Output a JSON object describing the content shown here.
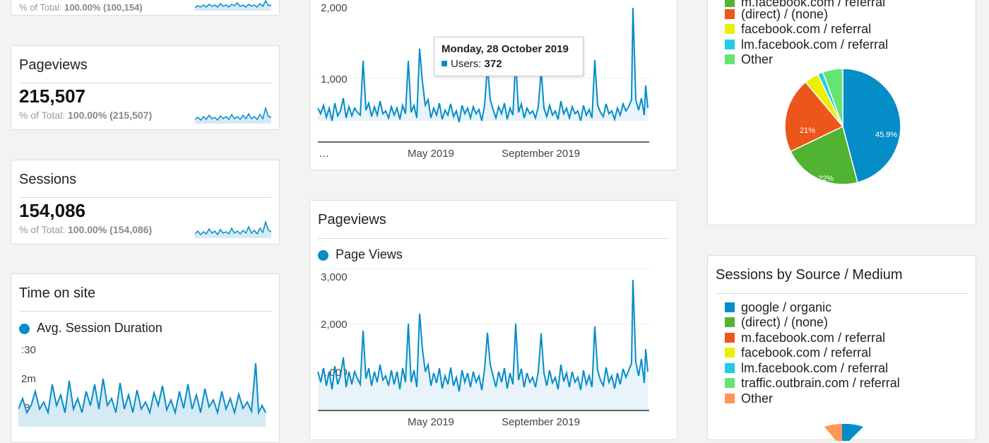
{
  "metric_cards": {
    "users_partial": {
      "pct_label": "% of Total:",
      "pct_value": "100.00% (100,154)"
    },
    "pageviews": {
      "title": "Pageviews",
      "value": "215,507",
      "pct_label": "% of Total:",
      "pct_value": "100.00% (215,507)"
    },
    "sessions": {
      "title": "Sessions",
      "value": "154,086",
      "pct_label": "% of Total:",
      "pct_value": "100.00% (154,086)"
    }
  },
  "time_on_site": {
    "title": "Time on site",
    "legend": "Avg. Session Duration",
    "y_ticks": [
      ":30",
      "2m",
      ":30"
    ]
  },
  "users_chart": {
    "y_ticks": [
      "2,000",
      "1,000"
    ],
    "x_ticks": [
      "…",
      "May 2019",
      "September 2019"
    ],
    "tooltip": {
      "date": "Monday, 28 October 2019",
      "label": "Users:",
      "value": "372"
    }
  },
  "pageviews_chart": {
    "title": "Pageviews",
    "legend": "Page Views",
    "y_ticks": [
      "3,000",
      "2,000",
      "1,000"
    ],
    "x_ticks": [
      "May 2019",
      "September 2019"
    ]
  },
  "users_by_source": {
    "legend": [
      {
        "label": "m.facebook.com / referral",
        "color": "#50b432"
      },
      {
        "label": "(direct) / (none)",
        "color": "#ed561b"
      },
      {
        "label": "facebook.com / referral",
        "color": "#edef00"
      },
      {
        "label": "lm.facebook.com / referral",
        "color": "#24cbe5"
      },
      {
        "label": "Other",
        "color": "#64e572"
      }
    ],
    "pie_labels": [
      "45.9%",
      "22%",
      "21%"
    ]
  },
  "sessions_by_source": {
    "title": "Sessions by Source / Medium",
    "legend": [
      {
        "label": "google / organic",
        "color": "#058dc7"
      },
      {
        "label": "(direct) / (none)",
        "color": "#50b432"
      },
      {
        "label": "m.facebook.com / referral",
        "color": "#ed561b"
      },
      {
        "label": "facebook.com / referral",
        "color": "#edef00"
      },
      {
        "label": "lm.facebook.com / referral",
        "color": "#24cbe5"
      },
      {
        "label": "traffic.outbrain.com / referral",
        "color": "#64e572"
      },
      {
        "label": "Other",
        "color": "#ff9655"
      }
    ]
  },
  "chart_data": [
    {
      "type": "pie",
      "title": "",
      "categories": [
        "google / organic",
        "m.facebook.com / referral",
        "(direct) / (none)",
        "facebook.com / referral",
        "lm.facebook.com / referral",
        "Other"
      ],
      "values": [
        45.9,
        22,
        21,
        4,
        1.5,
        5.6
      ],
      "colors": [
        "#058dc7",
        "#50b432",
        "#ed561b",
        "#edef00",
        "#24cbe5",
        "#64e572"
      ]
    }
  ]
}
